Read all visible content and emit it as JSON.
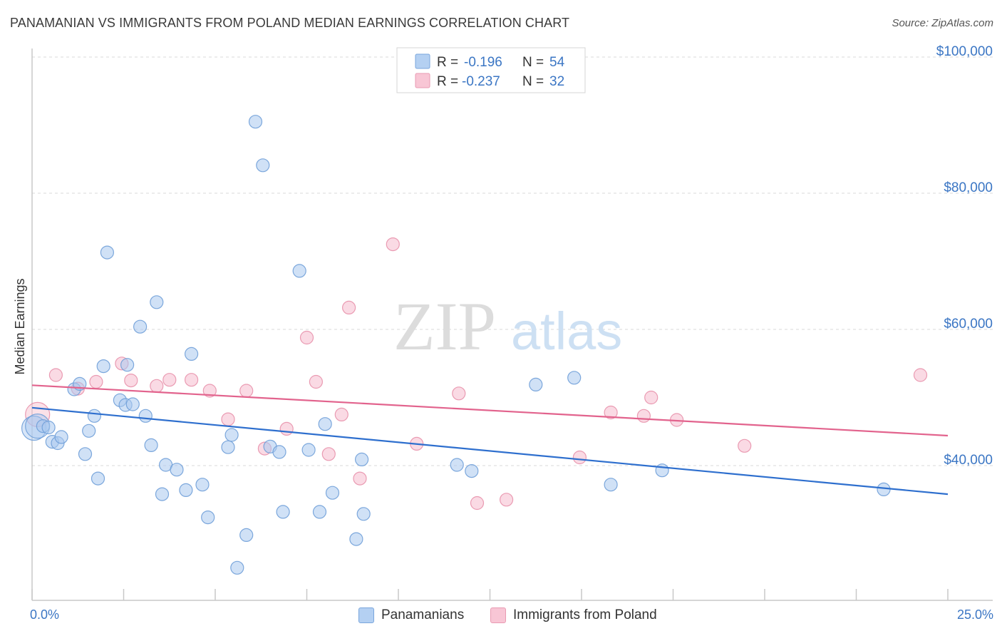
{
  "title": "PANAMANIAN VS IMMIGRANTS FROM POLAND MEDIAN EARNINGS CORRELATION CHART",
  "source": "Source: ZipAtlas.com",
  "watermark": {
    "zip": "ZIP",
    "atlas": "atlas"
  },
  "colors": {
    "blue_fill": "#a9c8ef",
    "blue_stroke": "#6f9fd8",
    "blue_line": "#2e6fce",
    "pink_fill": "#f6bccd",
    "pink_stroke": "#e891ab",
    "pink_line": "#e2638d",
    "tick_label": "#3b76c4",
    "grid": "#d9d9d9"
  },
  "legend_top": [
    {
      "r_label": "R =",
      "r_value": "-0.196",
      "n_label": "N =",
      "n_value": "54"
    },
    {
      "r_label": "R =",
      "r_value": "-0.237",
      "n_label": "N =",
      "n_value": "32"
    }
  ],
  "legend_bottom": [
    "Panamanians",
    "Immigrants from Poland"
  ],
  "chart_data": {
    "type": "scatter",
    "title": "PANAMANIAN VS IMMIGRANTS FROM POLAND MEDIAN EARNINGS CORRELATION CHART",
    "xlabel": "",
    "ylabel": "Median Earnings",
    "x_tick_labels": [
      "0.0%",
      "25.0%"
    ],
    "y_tick_labels": [
      "$40,000",
      "$60,000",
      "$80,000",
      "$100,000"
    ],
    "y_ticks": [
      40000,
      60000,
      80000,
      100000
    ],
    "xlim": [
      0,
      25
    ],
    "ylim": [
      21000,
      102000
    ],
    "grid": true,
    "legend_placement": "top-center",
    "series": [
      {
        "name": "Panamanians",
        "color": "#a9c8ef",
        "trend": {
          "x": [
            0,
            25
          ],
          "y": [
            48500,
            35800
          ]
        },
        "points": [
          [
            0.05,
            45500
          ],
          [
            0.15,
            45800
          ],
          [
            0.3,
            45800
          ],
          [
            0.45,
            45600
          ],
          [
            0.55,
            43500
          ],
          [
            0.7,
            43300
          ],
          [
            0.8,
            44200
          ],
          [
            1.15,
            51200
          ],
          [
            1.3,
            52000
          ],
          [
            1.45,
            41700
          ],
          [
            1.55,
            45100
          ],
          [
            1.7,
            47300
          ],
          [
            1.8,
            38100
          ],
          [
            1.95,
            54600
          ],
          [
            2.05,
            71300
          ],
          [
            2.4,
            49600
          ],
          [
            2.55,
            48900
          ],
          [
            2.6,
            54800
          ],
          [
            2.75,
            49000
          ],
          [
            2.95,
            60400
          ],
          [
            3.1,
            47300
          ],
          [
            3.25,
            43000
          ],
          [
            3.4,
            64000
          ],
          [
            3.55,
            35800
          ],
          [
            3.65,
            40100
          ],
          [
            3.95,
            39400
          ],
          [
            4.2,
            36400
          ],
          [
            4.35,
            56400
          ],
          [
            4.65,
            37200
          ],
          [
            4.8,
            32400
          ],
          [
            5.35,
            42700
          ],
          [
            5.45,
            44500
          ],
          [
            5.6,
            25000
          ],
          [
            5.85,
            29800
          ],
          [
            6.1,
            90500
          ],
          [
            6.3,
            84100
          ],
          [
            6.5,
            42800
          ],
          [
            6.75,
            42000
          ],
          [
            6.85,
            33200
          ],
          [
            7.3,
            68600
          ],
          [
            7.55,
            42300
          ],
          [
            7.85,
            33200
          ],
          [
            8.0,
            46100
          ],
          [
            8.2,
            36000
          ],
          [
            8.85,
            29200
          ],
          [
            9.0,
            40900
          ],
          [
            9.05,
            32900
          ],
          [
            11.6,
            40100
          ],
          [
            12.0,
            39200
          ],
          [
            13.75,
            51900
          ],
          [
            14.8,
            52900
          ],
          [
            15.8,
            37200
          ],
          [
            17.2,
            39300
          ],
          [
            23.25,
            36500
          ]
        ]
      },
      {
        "name": "Immigrants from Poland",
        "color": "#f6bccd",
        "trend": {
          "x": [
            0,
            25
          ],
          "y": [
            51800,
            44400
          ]
        },
        "points": [
          [
            0.15,
            47500
          ],
          [
            0.65,
            53300
          ],
          [
            1.25,
            51300
          ],
          [
            1.75,
            52300
          ],
          [
            2.45,
            55000
          ],
          [
            2.7,
            52500
          ],
          [
            3.4,
            51700
          ],
          [
            3.75,
            52600
          ],
          [
            4.35,
            52600
          ],
          [
            4.85,
            51000
          ],
          [
            5.35,
            46800
          ],
          [
            5.85,
            51000
          ],
          [
            6.35,
            42500
          ],
          [
            6.95,
            45400
          ],
          [
            7.5,
            58800
          ],
          [
            7.75,
            52300
          ],
          [
            8.1,
            41700
          ],
          [
            8.45,
            47500
          ],
          [
            8.65,
            63200
          ],
          [
            8.95,
            38100
          ],
          [
            9.85,
            72500
          ],
          [
            10.5,
            43200
          ],
          [
            11.65,
            50600
          ],
          [
            12.15,
            34500
          ],
          [
            12.95,
            35000
          ],
          [
            14.95,
            41200
          ],
          [
            15.8,
            47800
          ],
          [
            16.7,
            47300
          ],
          [
            16.9,
            50000
          ],
          [
            17.6,
            46700
          ],
          [
            19.45,
            42900
          ],
          [
            24.25,
            53300
          ]
        ]
      }
    ]
  }
}
